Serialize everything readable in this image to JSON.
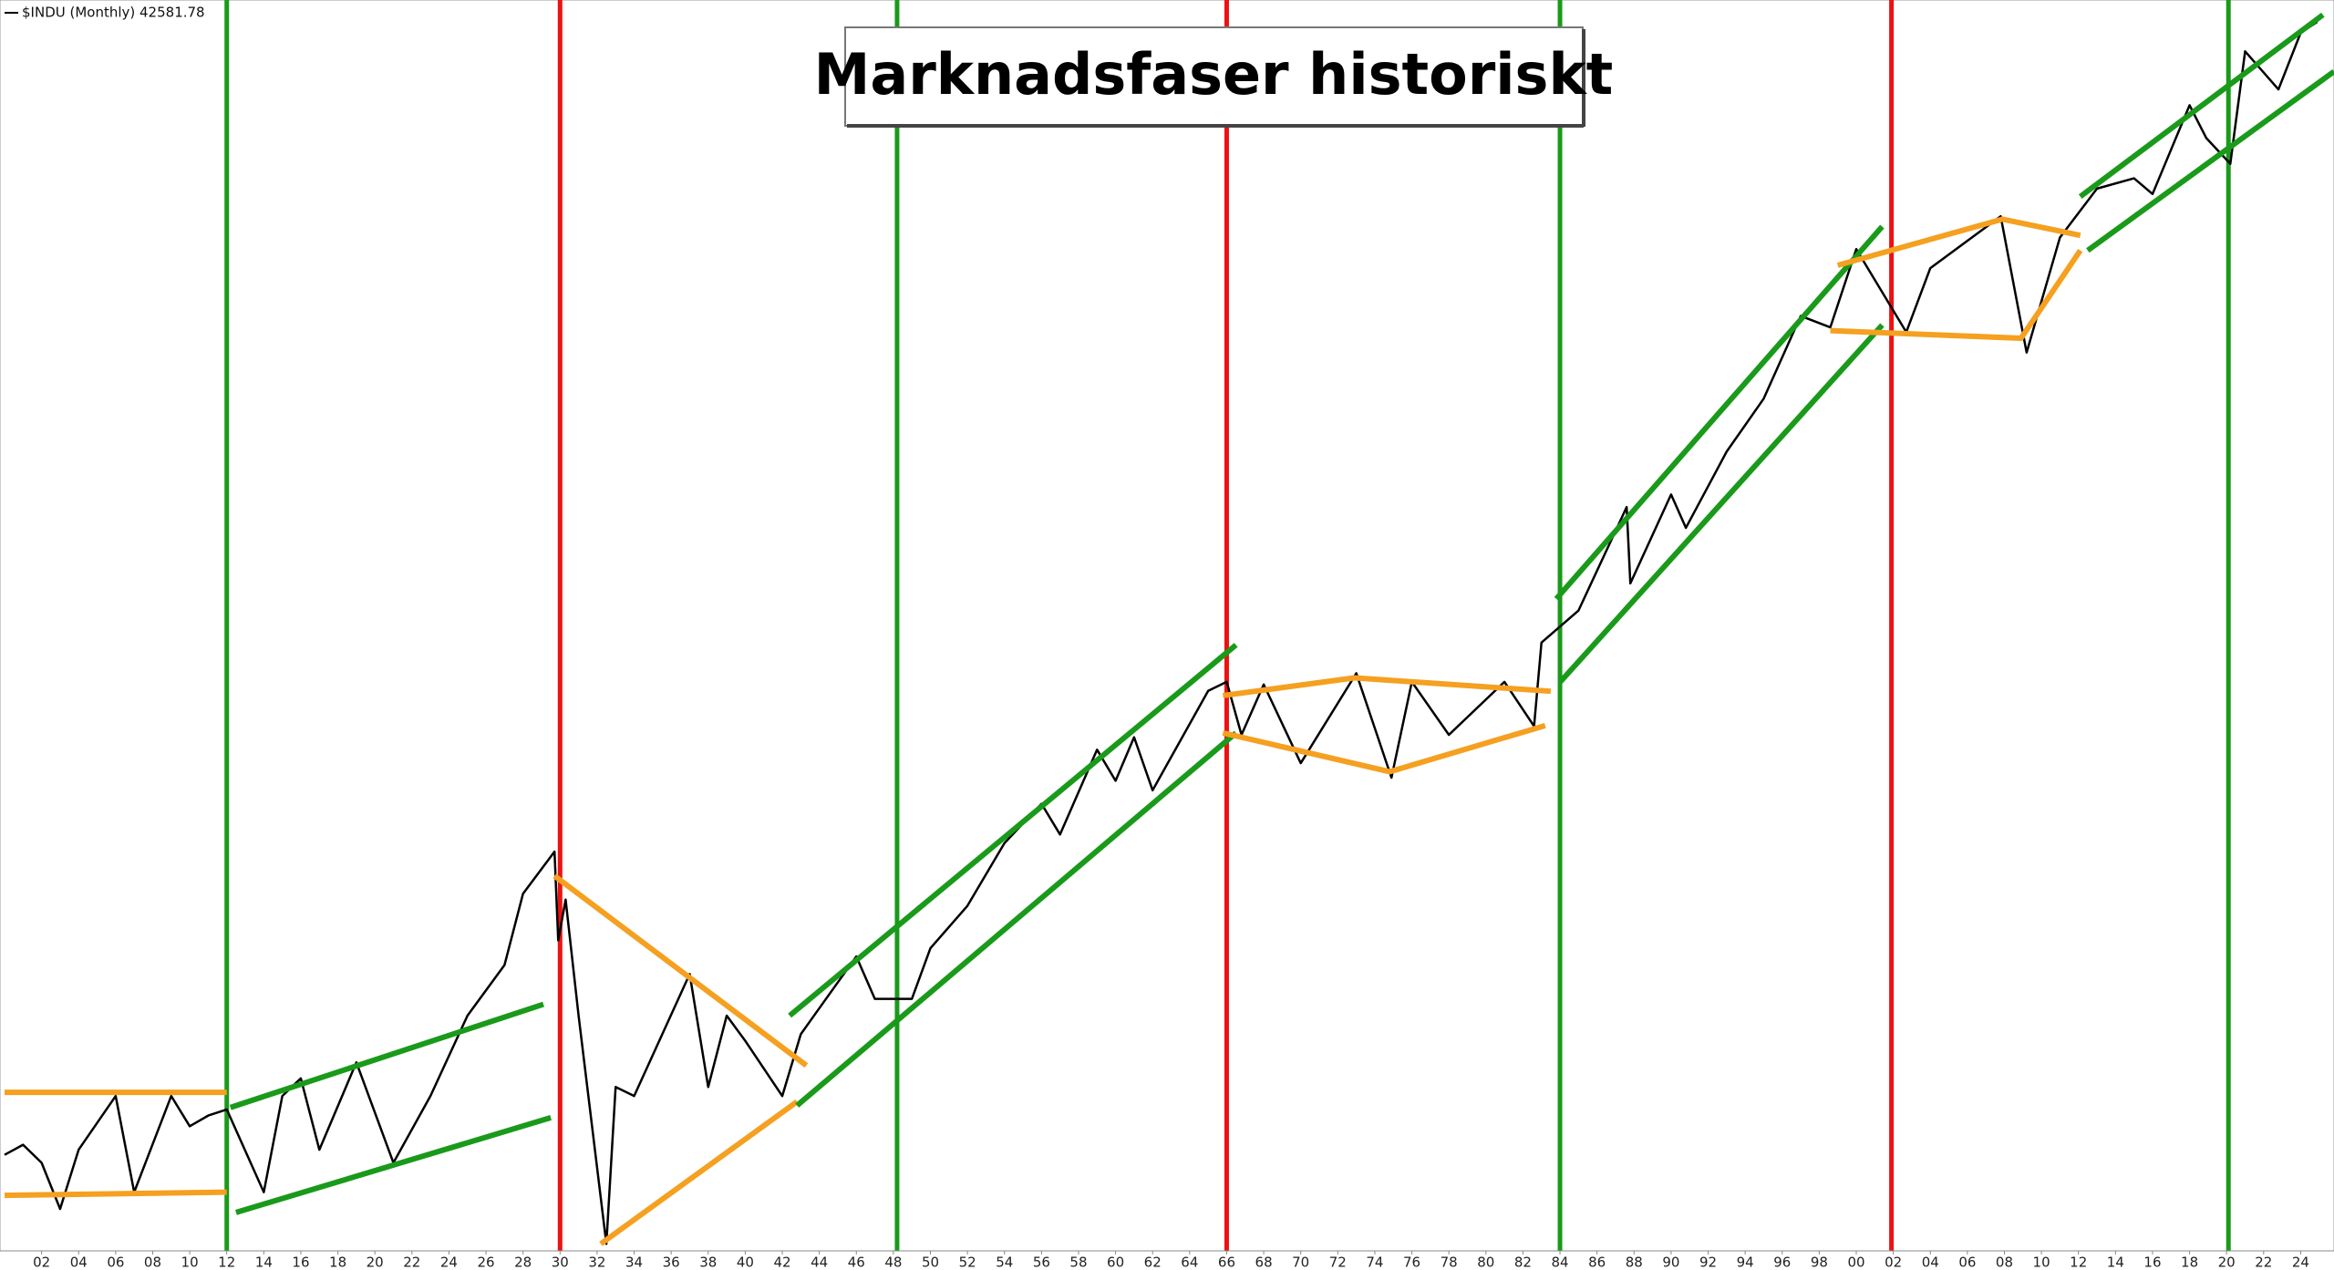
{
  "chart_data": {
    "type": "line",
    "title": "Marknadsfaser historiskt",
    "log_scale": true,
    "xlim": [
      1900,
      2025.8
    ],
    "ylim": [
      39.4,
      48200
    ],
    "xticks": [
      {
        "value": 1902,
        "label": "02"
      },
      {
        "value": 1904,
        "label": "04"
      },
      {
        "value": 1906,
        "label": "06"
      },
      {
        "value": 1908,
        "label": "08"
      },
      {
        "value": 1910,
        "label": "10"
      },
      {
        "value": 1912,
        "label": "12"
      },
      {
        "value": 1914,
        "label": "14"
      },
      {
        "value": 1916,
        "label": "16"
      },
      {
        "value": 1918,
        "label": "18"
      },
      {
        "value": 1920,
        "label": "20"
      },
      {
        "value": 1922,
        "label": "22"
      },
      {
        "value": 1924,
        "label": "24"
      },
      {
        "value": 1926,
        "label": "26"
      },
      {
        "value": 1928,
        "label": "28"
      },
      {
        "value": 1930,
        "label": "30"
      },
      {
        "value": 1932,
        "label": "32"
      },
      {
        "value": 1934,
        "label": "34"
      },
      {
        "value": 1936,
        "label": "36"
      },
      {
        "value": 1938,
        "label": "38"
      },
      {
        "value": 1940,
        "label": "40"
      },
      {
        "value": 1942,
        "label": "42"
      },
      {
        "value": 1944,
        "label": "44"
      },
      {
        "value": 1946,
        "label": "46"
      },
      {
        "value": 1948,
        "label": "48"
      },
      {
        "value": 1950,
        "label": "50"
      },
      {
        "value": 1952,
        "label": "52"
      },
      {
        "value": 1954,
        "label": "54"
      },
      {
        "value": 1956,
        "label": "56"
      },
      {
        "value": 1958,
        "label": "58"
      },
      {
        "value": 1960,
        "label": "60"
      },
      {
        "value": 1962,
        "label": "62"
      },
      {
        "value": 1964,
        "label": "64"
      },
      {
        "value": 1966,
        "label": "66"
      },
      {
        "value": 1968,
        "label": "68"
      },
      {
        "value": 1970,
        "label": "70"
      },
      {
        "value": 1972,
        "label": "72"
      },
      {
        "value": 1974,
        "label": "74"
      },
      {
        "value": 1976,
        "label": "76"
      },
      {
        "value": 1978,
        "label": "78"
      },
      {
        "value": 1980,
        "label": "80"
      },
      {
        "value": 1982,
        "label": "82"
      },
      {
        "value": 1984,
        "label": "84"
      },
      {
        "value": 1986,
        "label": "86"
      },
      {
        "value": 1988,
        "label": "88"
      },
      {
        "value": 1990,
        "label": "90"
      },
      {
        "value": 1992,
        "label": "92"
      },
      {
        "value": 1994,
        "label": "94"
      },
      {
        "value": 1996,
        "label": "96"
      },
      {
        "value": 1998,
        "label": "98"
      },
      {
        "value": 2000,
        "label": "00"
      },
      {
        "value": 2002,
        "label": "02"
      },
      {
        "value": 2004,
        "label": "04"
      },
      {
        "value": 2006,
        "label": "06"
      },
      {
        "value": 2008,
        "label": "08"
      },
      {
        "value": 2010,
        "label": "10"
      },
      {
        "value": 2012,
        "label": "12"
      },
      {
        "value": 2014,
        "label": "14"
      },
      {
        "value": 2016,
        "label": "16"
      },
      {
        "value": 2018,
        "label": "18"
      },
      {
        "value": 2020,
        "label": "20"
      },
      {
        "value": 2022,
        "label": "22"
      },
      {
        "value": 2024,
        "label": "24"
      }
    ],
    "x": [
      1900,
      1901,
      1902,
      1903,
      1904,
      1906,
      1907,
      1909,
      1910,
      1911,
      1912,
      1914,
      1915,
      1916,
      1917,
      1919,
      1921,
      1923,
      1925,
      1927,
      1928,
      1929.7,
      1929.9,
      1930.3,
      1931,
      1932.5,
      1933,
      1934,
      1937,
      1938,
      1939,
      1940,
      1942,
      1943,
      1946,
      1947,
      1949,
      1950,
      1952,
      1954,
      1956,
      1957,
      1959,
      1960,
      1961,
      1962,
      1965,
      1966,
      1966.8,
      1968,
      1970,
      1973,
      1974.9,
      1976,
      1978,
      1981,
      1982.6,
      1983,
      1985,
      1987.6,
      1987.8,
      1990,
      1990.8,
      1993,
      1995,
      1997,
      1998.6,
      2000,
      2002.7,
      2004,
      2007.8,
      2009.2,
      2011,
      2013,
      2015,
      2016,
      2018,
      2018.9,
      2020.2,
      2021,
      2022.8,
      2024,
      2024.9
    ],
    "series": [
      {
        "name": "$INDU (Monthly) 42581.78",
        "color": "#000000",
        "values": [
          68,
          72,
          65,
          50,
          70,
          95,
          55,
          95,
          80,
          85,
          88,
          55,
          95,
          105,
          70,
          115,
          65,
          95,
          150,
          200,
          300,
          381,
          230,
          290,
          150,
          41,
          100,
          95,
          190,
          100,
          150,
          130,
          95,
          135,
          210,
          165,
          165,
          220,
          280,
          400,
          500,
          420,
          680,
          570,
          730,
          540,
          950,
          1000,
          740,
          985,
          630,
          1050,
          580,
          1000,
          740,
          1000,
          777,
          1250,
          1500,
          2700,
          1750,
          2900,
          2400,
          3700,
          5000,
          8000,
          7500,
          11700,
          7300,
          10500,
          14100,
          6500,
          12500,
          16500,
          17500,
          16000,
          26500,
          22000,
          19000,
          36000,
          29000,
          40000,
          42582
        ]
      }
    ],
    "phase_lines": [
      {
        "x": 1912,
        "color": "#1a9a1a"
      },
      {
        "x": 1930,
        "color": "#ee1111"
      },
      {
        "x": 1948.2,
        "color": "#1a9a1a"
      },
      {
        "x": 1966,
        "color": "#ee1111"
      },
      {
        "x": 1984,
        "color": "#1a9a1a"
      },
      {
        "x": 2001.9,
        "color": "#ee1111"
      },
      {
        "x": 2020.1,
        "color": "#1a9a1a"
      }
    ],
    "trend_lines": [
      {
        "color": "#f5a020",
        "x": [
          1900,
          1912
        ],
        "y": [
          97,
          97
        ]
      },
      {
        "color": "#f5a020",
        "x": [
          1900,
          1912
        ],
        "y": [
          54,
          55
        ]
      },
      {
        "color": "#1a9a1a",
        "x": [
          1912.2,
          1929.1
        ],
        "y": [
          89,
          160
        ]
      },
      {
        "color": "#1a9a1a",
        "x": [
          1912.5,
          1929.5
        ],
        "y": [
          49,
          84
        ]
      },
      {
        "color": "#f5a020",
        "x": [
          1929.7,
          1943.3
        ],
        "y": [
          332,
          113
        ]
      },
      {
        "color": "#f5a020",
        "x": [
          1932.2,
          1942.8
        ],
        "y": [
          41,
          92
        ]
      },
      {
        "color": "#1a9a1a",
        "x": [
          1942.4,
          1966.5
        ],
        "y": [
          150,
          1233
        ]
      },
      {
        "color": "#1a9a1a",
        "x": [
          1942.8,
          1966.5
        ],
        "y": [
          90,
          748
        ]
      },
      {
        "color": "#f5a020",
        "x": [
          1965.8,
          1972.9,
          1983.5
        ],
        "y": [
          925,
          1023,
          948
        ]
      },
      {
        "color": "#f5a020",
        "x": [
          1965.8,
          1974.8,
          1983.2
        ],
        "y": [
          748,
          600,
          780
        ]
      },
      {
        "color": "#1a9a1a",
        "x": [
          1983.8,
          2001.4
        ],
        "y": [
          1603,
          13300
        ]
      },
      {
        "color": "#1a9a1a",
        "x": [
          1984,
          2001.4
        ],
        "y": [
          998,
          7600
        ]
      },
      {
        "color": "#f5a020",
        "x": [
          1999,
          2007.9,
          2012.1
        ],
        "y": [
          10670,
          13870,
          12650
        ]
      },
      {
        "color": "#f5a020",
        "x": [
          1998.6,
          2008.9,
          2012.1
        ],
        "y": [
          7360,
          7050,
          11610
        ]
      },
      {
        "color": "#1a9a1a",
        "x": [
          2012.1,
          2025.2
        ],
        "y": [
          15770,
          44300
        ]
      },
      {
        "color": "#1a9a1a",
        "x": [
          2012.5,
          2025.8
        ],
        "y": [
          11610,
          32100
        ]
      }
    ]
  }
}
